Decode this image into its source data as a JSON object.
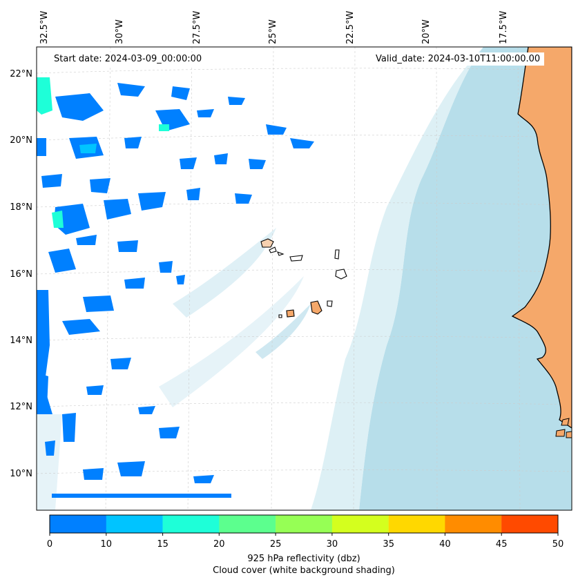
{
  "map": {
    "start_date": "Start date: 2024-03-09_00:00:00",
    "valid_date": "Valid_date: 2024-03-10T11:00:00.00",
    "longitude_labels": [
      "32.5°W",
      "30°W",
      "27.5°W",
      "25°W",
      "22.5°W",
      "20°W",
      "17.5°W"
    ],
    "latitude_labels": [
      "22°N",
      "20°N",
      "18°N",
      "16°N",
      "14°N",
      "12°N",
      "10°N"
    ],
    "land_color": "#f5a86a",
    "ocean_cloud_color": "#aad8e6",
    "reflectivity_color": "#0080ff"
  },
  "colorbar": {
    "ticks": [
      "0",
      "10",
      "15",
      "20",
      "25",
      "30",
      "35",
      "40",
      "45",
      "50"
    ],
    "colors": [
      "#0080ff",
      "#00c4ff",
      "#1effd8",
      "#5cff8e",
      "#96ff55",
      "#d4ff1e",
      "#ffd800",
      "#ff8c00",
      "#ff4a00"
    ],
    "label_line1": "925 hPa reflectivity (dbz)",
    "label_line2": "Cloud cover (white background shading)"
  }
}
